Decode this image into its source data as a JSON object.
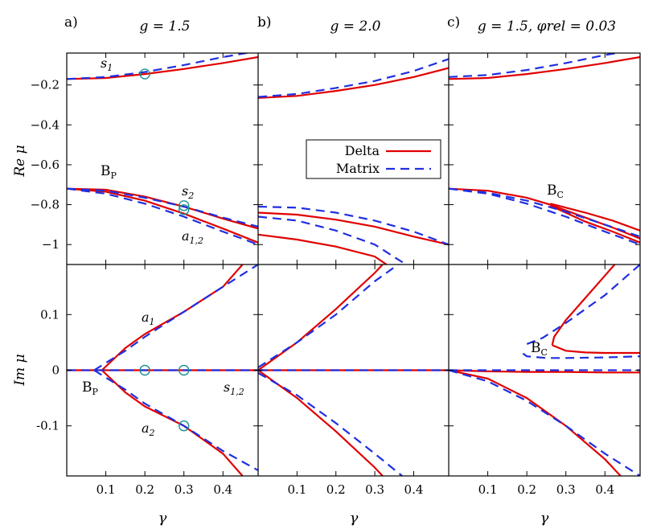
{
  "panels": [
    {
      "label": "a)",
      "title": "g = 1.5"
    },
    {
      "label": "b)",
      "title": "g = 2.0"
    },
    {
      "label": "c)",
      "title": "g = 1.5, φrel = 0.03"
    }
  ],
  "axes": {
    "top_ylabel": "Re μ",
    "bottom_ylabel": "Im μ",
    "xlabel": "γ",
    "x_ticks": [
      "0.1",
      "0.2",
      "0.3",
      "0.4"
    ],
    "top_y_ticks": [
      "−0.2",
      "−0.4",
      "−0.6",
      "−0.8",
      "−1"
    ],
    "bottom_y_ticks": [
      "0.1",
      "0",
      "-0.1"
    ]
  },
  "legend": {
    "delta": "Delta",
    "matrix": "Matrix"
  },
  "annotations": {
    "s1": "s1",
    "s2": "s2",
    "a12": "a1,2",
    "bp": "BP",
    "bc": "BC",
    "a1": "a1",
    "a2": "a2",
    "s12": "s1,2"
  },
  "colors": {
    "delta": "#e00000",
    "matrix": "#1f2fe0",
    "marker": "#199090"
  },
  "chart_data": [
    {
      "type": "line",
      "panel": "a-top",
      "xlabel": "",
      "ylabel": "Re μ",
      "xlim": [
        0.0,
        0.49
      ],
      "ylim": [
        -1.1,
        -0.04
      ],
      "series": [
        {
          "name": "Delta",
          "curves": [
            {
              "x": [
                0.0,
                0.1,
                0.2,
                0.3,
                0.4,
                0.49
              ],
              "y": [
                -0.17,
                -0.165,
                -0.145,
                -0.12,
                -0.09,
                -0.06
              ]
            },
            {
              "x": [
                0.0,
                0.1,
                0.2,
                0.3,
                0.4,
                0.49
              ],
              "y": [
                -0.72,
                -0.725,
                -0.76,
                -0.81,
                -0.87,
                -0.92
              ]
            },
            {
              "x": [
                0.0,
                0.1,
                0.2,
                0.3,
                0.4,
                0.49
              ],
              "y": [
                -0.72,
                -0.735,
                -0.78,
                -0.845,
                -0.92,
                -0.99
              ]
            }
          ]
        },
        {
          "name": "Matrix",
          "curves": [
            {
              "x": [
                0.0,
                0.1,
                0.2,
                0.3,
                0.4,
                0.49
              ],
              "y": [
                -0.17,
                -0.16,
                -0.135,
                -0.1,
                -0.06,
                -0.03
              ]
            },
            {
              "x": [
                0.0,
                0.1,
                0.2,
                0.3,
                0.4,
                0.49
              ],
              "y": [
                -0.72,
                -0.73,
                -0.765,
                -0.81,
                -0.865,
                -0.91
              ]
            },
            {
              "x": [
                0.0,
                0.1,
                0.2,
                0.3,
                0.4,
                0.49
              ],
              "y": [
                -0.72,
                -0.745,
                -0.795,
                -0.86,
                -0.935,
                -1.0
              ]
            }
          ]
        }
      ],
      "markers": [
        {
          "x": 0.2,
          "y": -0.145
        },
        {
          "x": 0.3,
          "y": -0.805
        },
        {
          "x": 0.3,
          "y": -0.825
        }
      ]
    },
    {
      "type": "line",
      "panel": "b-top",
      "xlim": [
        0.0,
        0.49
      ],
      "ylim": [
        -1.1,
        -0.04
      ],
      "series": [
        {
          "name": "Delta",
          "curves": [
            {
              "x": [
                0.0,
                0.1,
                0.2,
                0.3,
                0.4,
                0.49
              ],
              "y": [
                -0.265,
                -0.255,
                -0.23,
                -0.2,
                -0.16,
                -0.115
              ]
            },
            {
              "x": [
                0.0,
                0.1,
                0.2,
                0.3,
                0.4,
                0.49
              ],
              "y": [
                -0.84,
                -0.85,
                -0.875,
                -0.91,
                -0.96,
                -1.0
              ]
            },
            {
              "x": [
                0.0,
                0.1,
                0.2,
                0.3,
                0.33
              ],
              "y": [
                -0.95,
                -0.975,
                -1.01,
                -1.06,
                -1.1
              ]
            }
          ]
        },
        {
          "name": "Matrix",
          "curves": [
            {
              "x": [
                0.0,
                0.1,
                0.2,
                0.3,
                0.4,
                0.49
              ],
              "y": [
                -0.26,
                -0.245,
                -0.215,
                -0.18,
                -0.13,
                -0.07
              ]
            },
            {
              "x": [
                0.0,
                0.1,
                0.2,
                0.3,
                0.4,
                0.49
              ],
              "y": [
                -0.81,
                -0.815,
                -0.84,
                -0.88,
                -0.935,
                -1.0
              ]
            },
            {
              "x": [
                0.0,
                0.1,
                0.2,
                0.3,
                0.38
              ],
              "y": [
                -0.86,
                -0.88,
                -0.93,
                -1.0,
                -1.1
              ]
            }
          ]
        }
      ]
    },
    {
      "type": "line",
      "panel": "c-top",
      "xlim": [
        0.0,
        0.49
      ],
      "ylim": [
        -1.1,
        -0.04
      ],
      "series": [
        {
          "name": "Delta",
          "curves": [
            {
              "x": [
                0.0,
                0.1,
                0.2,
                0.3,
                0.4,
                0.49
              ],
              "y": [
                -0.17,
                -0.165,
                -0.145,
                -0.12,
                -0.09,
                -0.06
              ]
            },
            {
              "x": [
                0.0,
                0.1,
                0.2,
                0.26
              ],
              "y": [
                -0.72,
                -0.73,
                -0.765,
                -0.8
              ]
            },
            {
              "x": [
                0.26,
                0.35,
                0.42,
                0.49
              ],
              "y": [
                -0.795,
                -0.84,
                -0.88,
                -0.93
              ]
            },
            {
              "x": [
                0.26,
                0.35,
                0.42,
                0.49
              ],
              "y": [
                -0.8,
                -0.865,
                -0.915,
                -0.97
              ]
            },
            {
              "x": [
                0.26,
                0.35,
                0.42,
                0.49
              ],
              "y": [
                -0.805,
                -0.885,
                -0.935,
                -0.99
              ]
            }
          ]
        },
        {
          "name": "Matrix",
          "curves": [
            {
              "x": [
                0.0,
                0.1,
                0.2,
                0.3,
                0.4,
                0.49
              ],
              "y": [
                -0.16,
                -0.15,
                -0.125,
                -0.09,
                -0.05,
                -0.02
              ]
            },
            {
              "x": [
                0.0,
                0.1,
                0.2,
                0.3,
                0.4,
                0.49
              ],
              "y": [
                -0.72,
                -0.74,
                -0.78,
                -0.835,
                -0.9,
                -0.96
              ]
            },
            {
              "x": [
                0.0,
                0.1,
                0.2,
                0.3,
                0.4,
                0.49
              ],
              "y": [
                -0.72,
                -0.745,
                -0.795,
                -0.86,
                -0.935,
                -1.0
              ]
            }
          ]
        }
      ]
    },
    {
      "type": "line",
      "panel": "a-bottom",
      "xlabel": "γ",
      "ylabel": "Im μ",
      "xlim": [
        0.0,
        0.49
      ],
      "ylim": [
        -0.19,
        0.19
      ],
      "series": [
        {
          "name": "Delta",
          "curves": [
            {
              "x": [
                0.0,
                0.49
              ],
              "y": [
                0.0,
                0.0
              ]
            },
            {
              "x": [
                0.09,
                0.15,
                0.2,
                0.3,
                0.4,
                0.45
              ],
              "y": [
                0.0,
                0.04,
                0.065,
                0.105,
                0.15,
                0.19
              ]
            },
            {
              "x": [
                0.09,
                0.15,
                0.2,
                0.3,
                0.4,
                0.45
              ],
              "y": [
                0.0,
                -0.04,
                -0.065,
                -0.1,
                -0.15,
                -0.19
              ]
            }
          ]
        },
        {
          "name": "Matrix",
          "curves": [
            {
              "x": [
                0.0,
                0.49
              ],
              "y": [
                0.0,
                0.0
              ]
            },
            {
              "x": [
                0.07,
                0.15,
                0.2,
                0.3,
                0.4,
                0.49
              ],
              "y": [
                0.0,
                0.035,
                0.06,
                0.105,
                0.15,
                0.19
              ]
            },
            {
              "x": [
                0.07,
                0.15,
                0.2,
                0.3,
                0.4,
                0.49
              ],
              "y": [
                0.0,
                -0.035,
                -0.06,
                -0.1,
                -0.145,
                -0.18
              ]
            }
          ]
        }
      ],
      "markers": [
        {
          "x": 0.2,
          "y": 0.0
        },
        {
          "x": 0.3,
          "y": 0.0
        },
        {
          "x": 0.3,
          "y": -0.1
        }
      ]
    },
    {
      "type": "line",
      "panel": "b-bottom",
      "xlabel": "γ",
      "xlim": [
        0.0,
        0.49
      ],
      "ylim": [
        -0.19,
        0.19
      ],
      "series": [
        {
          "name": "Delta",
          "curves": [
            {
              "x": [
                0.0,
                0.49
              ],
              "y": [
                0.0,
                0.0
              ]
            },
            {
              "x": [
                0.0,
                0.1,
                0.2,
                0.3,
                0.32
              ],
              "y": [
                0.0,
                0.05,
                0.11,
                0.175,
                0.19
              ]
            },
            {
              "x": [
                0.0,
                0.1,
                0.2,
                0.3,
                0.32
              ],
              "y": [
                0.0,
                -0.05,
                -0.11,
                -0.175,
                -0.19
              ]
            }
          ]
        },
        {
          "name": "Matrix",
          "curves": [
            {
              "x": [
                0.0,
                0.49
              ],
              "y": [
                0.0,
                0.0
              ]
            },
            {
              "x": [
                0.0,
                0.1,
                0.2,
                0.3,
                0.36
              ],
              "y": [
                0.005,
                0.05,
                0.1,
                0.16,
                0.19
              ]
            },
            {
              "x": [
                0.0,
                0.1,
                0.2,
                0.3,
                0.37
              ],
              "y": [
                -0.005,
                -0.045,
                -0.095,
                -0.15,
                -0.19
              ]
            }
          ]
        }
      ]
    },
    {
      "type": "line",
      "panel": "c-bottom",
      "xlabel": "γ",
      "xlim": [
        0.0,
        0.49
      ],
      "ylim": [
        -0.19,
        0.19
      ],
      "series": [
        {
          "name": "Delta",
          "curves": [
            {
              "x": [
                0.0,
                0.1,
                0.2,
                0.3,
                0.4,
                0.49
              ],
              "y": [
                0.0,
                -0.002,
                -0.003,
                -0.003,
                -0.004,
                -0.004
              ]
            },
            {
              "x": [
                0.0,
                0.1,
                0.2,
                0.3,
                0.4,
                0.44
              ],
              "y": [
                0.0,
                -0.015,
                -0.05,
                -0.1,
                -0.16,
                -0.19
              ]
            },
            {
              "x": [
                0.265,
                0.27,
                0.3,
                0.35,
                0.4,
                0.425
              ],
              "y": [
                0.045,
                0.06,
                0.09,
                0.13,
                0.17,
                0.19
              ]
            },
            {
              "x": [
                0.265,
                0.3,
                0.35,
                0.4,
                0.49
              ],
              "y": [
                0.045,
                0.035,
                0.032,
                0.031,
                0.031
              ]
            }
          ]
        },
        {
          "name": "Matrix",
          "curves": [
            {
              "x": [
                0.0,
                0.49
              ],
              "y": [
                0.0,
                0.0
              ]
            },
            {
              "x": [
                0.0,
                0.1,
                0.2,
                0.3,
                0.4,
                0.49
              ],
              "y": [
                0.0,
                -0.02,
                -0.055,
                -0.1,
                -0.15,
                -0.19
              ]
            },
            {
              "x": [
                0.49,
                0.4,
                0.3,
                0.24,
                0.2,
                0.19
              ],
              "y": [
                0.19,
                0.135,
                0.085,
                0.058,
                0.047,
                0.04
              ]
            },
            {
              "x": [
                0.19,
                0.2,
                0.25,
                0.3,
                0.4,
                0.49
              ],
              "y": [
                0.03,
                0.025,
                0.022,
                0.022,
                0.023,
                0.025
              ]
            }
          ]
        }
      ]
    }
  ]
}
